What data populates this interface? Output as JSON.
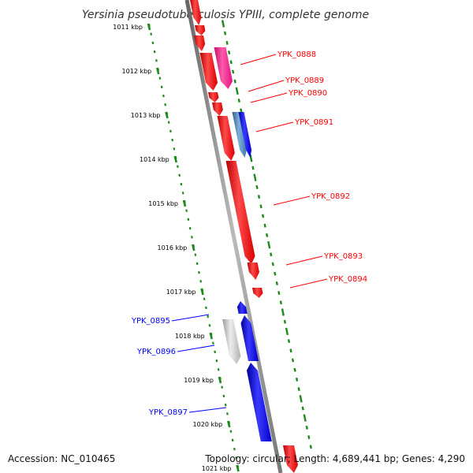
{
  "title": "Yersinia pseudotuberculosis YPIII, complete genome",
  "footer": {
    "accession": "Accession: NC_010465",
    "summary": "Topology: circular; Length: 4,689,441 bp; Genes: 4,290"
  },
  "colors": {
    "forward_gene": "#ff0000",
    "reverse_gene": "#0000ff",
    "magenta_gene": "#ff1493",
    "steelblue_gene": "#4682b4",
    "gray_gene": "#c0c0c0",
    "backbone": "#7f7f7f",
    "gc_track": "#1a8a1a"
  },
  "ruler": [
    {
      "label": "1011 kbp"
    },
    {
      "label": "1012 kbp"
    },
    {
      "label": "1013 kbp"
    },
    {
      "label": "1014 kbp"
    },
    {
      "label": "1015 kbp"
    },
    {
      "label": "1016 kbp"
    },
    {
      "label": "1017 kbp"
    },
    {
      "label": "1018 kbp"
    },
    {
      "label": "1019 kbp"
    },
    {
      "label": "1020 kbp"
    },
    {
      "label": "1021 kbp"
    }
  ],
  "gene_labels": [
    {
      "name": "YPK_0888",
      "strand": "forward"
    },
    {
      "name": "YPK_0889",
      "strand": "forward"
    },
    {
      "name": "YPK_0890",
      "strand": "forward"
    },
    {
      "name": "YPK_0891",
      "strand": "forward"
    },
    {
      "name": "YPK_0892",
      "strand": "forward"
    },
    {
      "name": "YPK_0893",
      "strand": "forward"
    },
    {
      "name": "YPK_0894",
      "strand": "forward"
    },
    {
      "name": "YPK_0895",
      "strand": "reverse"
    },
    {
      "name": "YPK_0896",
      "strand": "reverse"
    },
    {
      "name": "YPK_0897",
      "strand": "reverse"
    }
  ]
}
